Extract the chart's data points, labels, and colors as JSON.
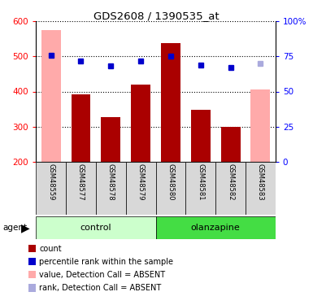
{
  "title": "GDS2608 / 1390535_at",
  "samples": [
    "GSM48559",
    "GSM48577",
    "GSM48578",
    "GSM48579",
    "GSM48580",
    "GSM48581",
    "GSM48582",
    "GSM48583"
  ],
  "values": [
    575,
    393,
    328,
    420,
    537,
    347,
    298,
    405
  ],
  "percentile_ranks": [
    76,
    72,
    68,
    72,
    75,
    69,
    67,
    70
  ],
  "absent_value": [
    true,
    false,
    false,
    false,
    false,
    false,
    false,
    true
  ],
  "absent_rank": [
    false,
    false,
    false,
    false,
    false,
    false,
    false,
    true
  ],
  "ylim_left": [
    200,
    600
  ],
  "ylim_right": [
    0,
    100
  ],
  "yticks_left": [
    200,
    300,
    400,
    500,
    600
  ],
  "yticks_right": [
    0,
    25,
    50,
    75,
    100
  ],
  "bar_color_present": "#aa0000",
  "bar_color_absent": "#ffaaaa",
  "dot_color_present": "#0000cc",
  "dot_color_absent": "#aaaadd",
  "bar_width": 0.65,
  "ctrl_color_light": "#ccffcc",
  "ctrl_color_dark": "#44dd44",
  "group_label": "agent",
  "legend_items": [
    {
      "label": "count",
      "color": "#aa0000"
    },
    {
      "label": "percentile rank within the sample",
      "color": "#0000cc"
    },
    {
      "label": "value, Detection Call = ABSENT",
      "color": "#ffaaaa"
    },
    {
      "label": "rank, Detection Call = ABSENT",
      "color": "#aaaadd"
    }
  ]
}
